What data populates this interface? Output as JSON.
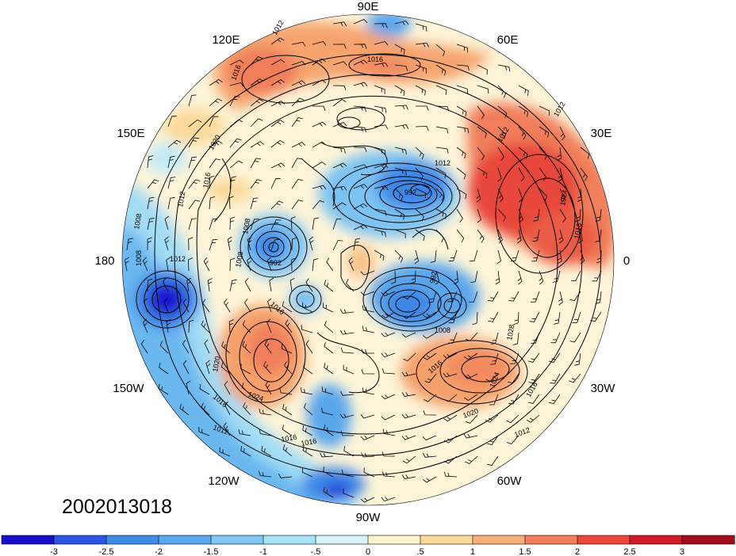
{
  "map": {
    "timestamp": "2002013018",
    "longitude_labels": [
      "90E",
      "60E",
      "30E",
      "0",
      "30W",
      "60W",
      "90W",
      "120W",
      "150W",
      "180",
      "150E",
      "120E"
    ],
    "isobar_labels": [
      "1012",
      "1016",
      "1016",
      "1012",
      "1012",
      "1020",
      "1016",
      "1012",
      "1008",
      "1008",
      "1012",
      "1008",
      "992",
      "992",
      "1008",
      "1016",
      "1024",
      "1020",
      "1016",
      "1012",
      "1016",
      "992",
      "1008",
      "1016",
      "1028",
      "1024",
      "1016",
      "1020",
      "1012",
      "1016",
      "1024",
      "1016",
      "1012"
    ],
    "palette": {
      "deep_blue": "#1e18d0",
      "cold_blue": "#3c8ce8",
      "light_blue": "#9ad8f5",
      "neutral": "#fdf6e0",
      "warm_orange": "#f5a06a",
      "hot_red": "#e8473a"
    }
  },
  "colorbar": {
    "ticks": [
      "-3",
      "-2.5",
      "-2",
      "-1.5",
      "-1",
      "-.5",
      "0",
      ".5",
      "1",
      "1.5",
      "2",
      "2.5",
      "3"
    ],
    "colors": [
      "#1a0fc9",
      "#2c55e0",
      "#3f8be8",
      "#5ba8ee",
      "#81c6f3",
      "#a9e3f7",
      "#d8f2fa",
      "#fdf3d0",
      "#fbd99a",
      "#f6b07a",
      "#f27e5b",
      "#e8473a",
      "#cf1c2a",
      "#a00e1e"
    ]
  }
}
